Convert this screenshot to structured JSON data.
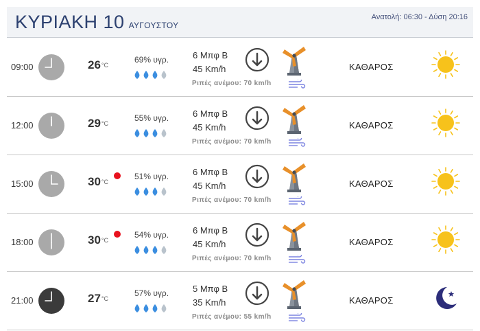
{
  "header": {
    "day": "ΚΥΡΙΑΚΗ 10",
    "month": "ΑΥΓΟΥΣΤΟΥ",
    "sun_times": "Ανατολή: 06:30  - Δύση 20:16"
  },
  "rows": [
    {
      "time": "09:00",
      "clock_hour": 9,
      "night": false,
      "temp": "26",
      "temp_unit": "°C",
      "hot": false,
      "humidity": "69% υγρ.",
      "humidity_level": 3,
      "wind_beaufort": "6 Μπφ Β",
      "wind_speed": "45 Km/h",
      "gust": "Ριπές ανέμου: 70 km/h",
      "condition": "ΚΑΘΑΡΟΣ",
      "icon": "sun-icon"
    },
    {
      "time": "12:00",
      "clock_hour": 12,
      "night": false,
      "temp": "29",
      "temp_unit": "°C",
      "hot": false,
      "humidity": "55% υγρ.",
      "humidity_level": 3,
      "wind_beaufort": "6 Μπφ Β",
      "wind_speed": "45 Km/h",
      "gust": "Ριπές ανέμου: 70 km/h",
      "condition": "ΚΑΘΑΡΟΣ",
      "icon": "sun-icon"
    },
    {
      "time": "15:00",
      "clock_hour": 15,
      "night": false,
      "temp": "30",
      "temp_unit": "°C",
      "hot": true,
      "humidity": "51% υγρ.",
      "humidity_level": 3,
      "wind_beaufort": "6 Μπφ Β",
      "wind_speed": "45 Km/h",
      "gust": "Ριπές ανέμου: 70 km/h",
      "condition": "ΚΑΘΑΡΟΣ",
      "icon": "sun-icon"
    },
    {
      "time": "18:00",
      "clock_hour": 18,
      "night": false,
      "temp": "30",
      "temp_unit": "°C",
      "hot": true,
      "humidity": "54% υγρ.",
      "humidity_level": 3,
      "wind_beaufort": "6 Μπφ Β",
      "wind_speed": "45 Km/h",
      "gust": "Ριπές ανέμου: 70 km/h",
      "condition": "ΚΑΘΑΡΟΣ",
      "icon": "sun-icon"
    },
    {
      "time": "21:00",
      "clock_hour": 21,
      "night": true,
      "temp": "27",
      "temp_unit": "°C",
      "hot": false,
      "humidity": "57% υγρ.",
      "humidity_level": 3,
      "wind_beaufort": "5 Μπφ Β",
      "wind_speed": "35 Km/h",
      "gust": "Ριπές ανέμου: 55 km/h",
      "condition": "ΚΑΘΑΡΟΣ",
      "icon": "moon-icon"
    }
  ],
  "colors": {
    "title": "#2d4170",
    "clock_day": "#a9a9a9",
    "clock_night": "#3b3b3b",
    "hot": "#e8121e",
    "drop_full": "#3b8ee0",
    "drop_empty": "#b9c3cc",
    "sun": "#f7c21b",
    "moon": "#2c2d7a"
  }
}
